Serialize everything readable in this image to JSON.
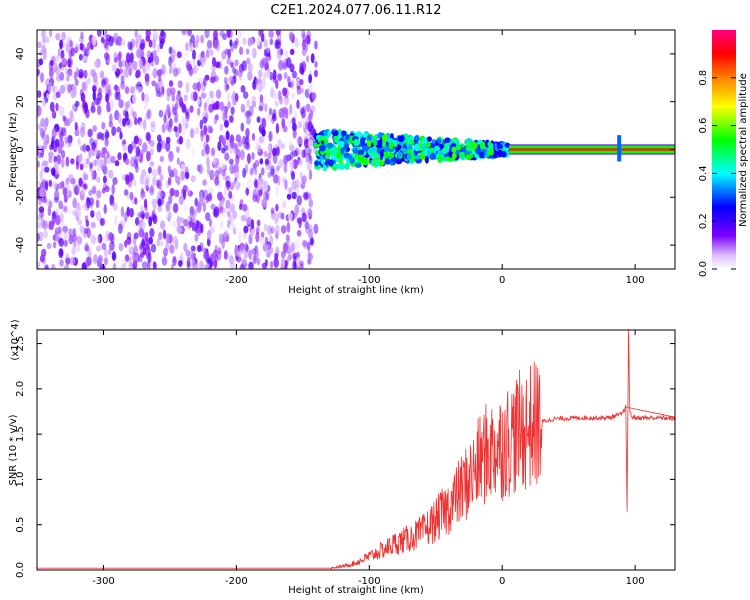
{
  "title": "C2E1.2024.077.06.11.R12",
  "chart_data": [
    {
      "type": "heatmap",
      "xlabel": "Height of straight line (km)",
      "ylabel": "Frequency (Hz)",
      "xlim": [
        -350,
        130
      ],
      "ylim": [
        -50,
        50
      ],
      "x_ticks": [
        -300,
        -200,
        -100,
        0,
        100
      ],
      "y_ticks": [
        -40,
        -20,
        0,
        20,
        40
      ],
      "colorbar": {
        "label": "Normalized spectral amplitude",
        "range": [
          0,
          1
        ],
        "ticks": [
          0.0,
          0.2,
          0.4,
          0.6,
          0.8
        ],
        "stops": [
          "#ffffff",
          "#7a00ff",
          "#0000ff",
          "#00ffff",
          "#00ff00",
          "#ffff00",
          "#ff8000",
          "#ff0000",
          "#ff0080"
        ]
      },
      "features": [
        {
          "kind": "noise_region",
          "x_range": [
            -350,
            -140
          ],
          "y_range": [
            -50,
            50
          ],
          "amplitude": 0.1
        },
        {
          "kind": "converging_band",
          "x_range": [
            -140,
            5
          ],
          "center_hz": 0,
          "half_width_start": 8,
          "half_width_end": 2,
          "amplitude": 0.35
        },
        {
          "kind": "carrier_line",
          "x_range": [
            5,
            130
          ],
          "center_hz": 0,
          "half_width": 1.5,
          "amplitude": 0.85
        },
        {
          "kind": "spike",
          "x": 88,
          "y_range": [
            -5,
            6
          ],
          "amplitude": 0.3
        }
      ]
    },
    {
      "type": "line",
      "xlabel": "Height of straight line (km)",
      "ylabel": "SNR (10 * v/v)",
      "y_multiplier": "(x10^4)",
      "xlim": [
        -350,
        130
      ],
      "ylim": [
        0,
        2.65
      ],
      "x_ticks": [
        -300,
        -200,
        -100,
        0,
        100
      ],
      "y_ticks": [
        0.0,
        0.5,
        1.0,
        1.5,
        2.0,
        2.5
      ],
      "color": "#ee3333",
      "series": [
        {
          "x": [
            -350,
            -300,
            -250,
            -200,
            -150,
            -130,
            -120,
            -110,
            -100,
            -90,
            -80,
            -70,
            -60,
            -50,
            -40,
            -30,
            -20,
            -15,
            -10,
            0,
            10,
            20,
            30,
            40,
            60,
            80,
            90,
            93,
            94,
            95,
            96,
            97,
            100,
            110,
            120,
            130
          ],
          "y": [
            0.02,
            0.02,
            0.02,
            0.02,
            0.02,
            0.02,
            0.04,
            0.08,
            0.15,
            0.22,
            0.3,
            0.35,
            0.42,
            0.55,
            0.7,
            0.9,
            1.1,
            1.25,
            1.3,
            1.38,
            1.5,
            1.58,
            1.64,
            1.67,
            1.68,
            1.68,
            1.72,
            1.8,
            0.65,
            2.65,
            1.75,
            1.7,
            1.68,
            1.68,
            1.68,
            1.67
          ]
        }
      ]
    }
  ]
}
